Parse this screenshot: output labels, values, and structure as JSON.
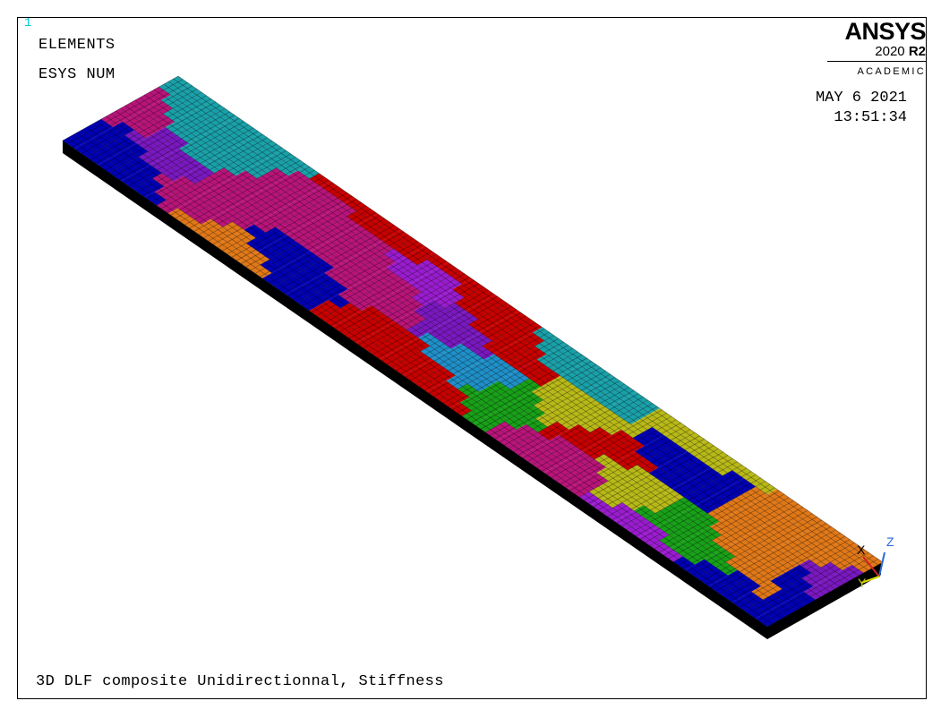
{
  "window": {
    "number": "1"
  },
  "plot": {
    "labels": {
      "line1": "ELEMENTS",
      "line2": "ESYS NUM"
    },
    "date": "MAY  6 2021",
    "time": "13:51:34",
    "caption": "3D DLF composite Unidirectionnal, Stiffness"
  },
  "brand": {
    "name": "ANSYS",
    "version_year": "2020",
    "version_release": "R2",
    "license": "ACADEMIC"
  },
  "axes": {
    "x": "X",
    "y": "Y",
    "z": "Z"
  },
  "colors": {
    "background": "#ffffff",
    "edge": "#000000",
    "palette": [
      "#1f8fc8",
      "#b8147a",
      "#c80000",
      "#9a1ccf",
      "#1aa0a8",
      "#0000b4",
      "#18a018",
      "#7a18c0",
      "#b8b818",
      "#e07818"
    ]
  }
}
